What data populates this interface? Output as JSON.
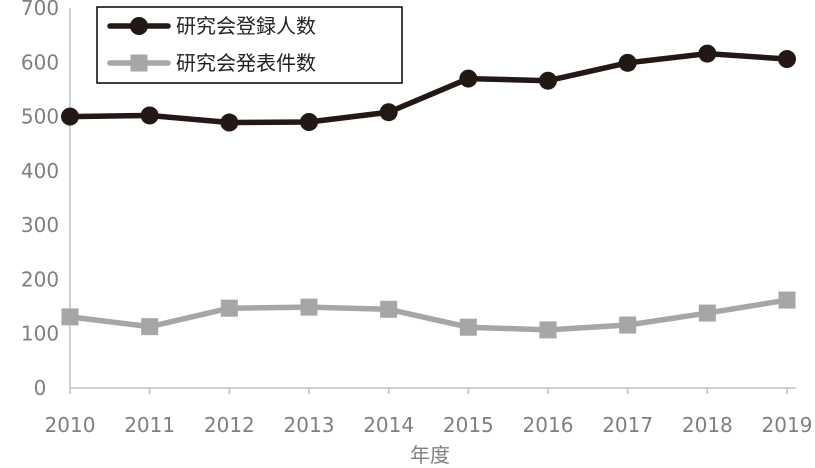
{
  "chart_data": {
    "type": "line",
    "x": [
      "2010",
      "2011",
      "2012",
      "2013",
      "2014",
      "2015",
      "2016",
      "2017",
      "2018",
      "2019"
    ],
    "xlabel": "年度",
    "ylabel": "",
    "ylim": [
      0,
      700
    ],
    "yticks": [
      "0",
      "100",
      "200",
      "300",
      "400",
      "500",
      "600",
      "700"
    ],
    "grid": false,
    "legend_position": "top-left",
    "series": [
      {
        "name": "研究会登録人数",
        "color": "#231815",
        "marker": "circle",
        "values": [
          500,
          502,
          489,
          490,
          508,
          570,
          566,
          599,
          616,
          606
        ]
      },
      {
        "name": "研究会発表件数",
        "color": "#a6a6a6",
        "marker": "square",
        "values": [
          131,
          113,
          147,
          149,
          145,
          112,
          107,
          116,
          138,
          162
        ]
      }
    ]
  }
}
